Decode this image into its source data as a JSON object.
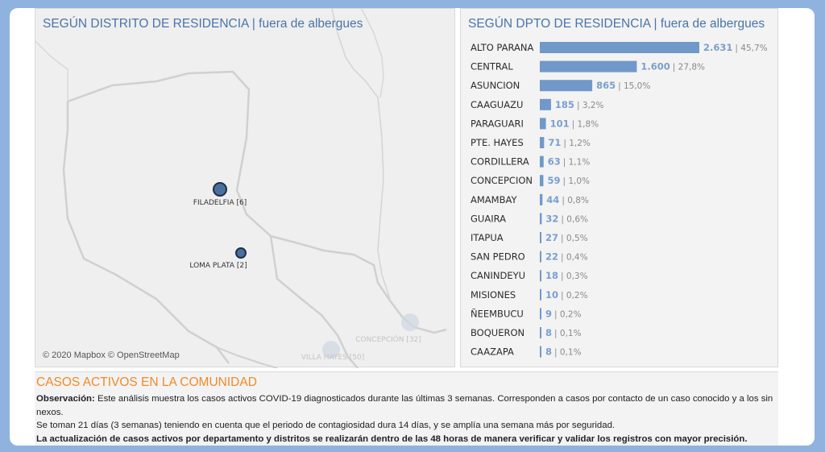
{
  "map": {
    "title": "SEGÚN DISTRITO DE RESIDENCIA | fuera de albergues",
    "credit": "© 2020 Mapbox  © OpenStreetMap",
    "markers": [
      {
        "label": "FILADELFIA [6]",
        "active": true
      },
      {
        "label": "LOMA PLATA [2]",
        "active": true
      },
      {
        "label": "CONCEPCIÓN [32]",
        "active": false
      },
      {
        "label": "VILLA HAYES [50]",
        "active": false
      }
    ],
    "colors": {
      "active": "#4b6f9e",
      "faded": "#cfd8e3",
      "border": "#d0d0d0"
    }
  },
  "chart_data": {
    "type": "bar",
    "orientation": "horizontal",
    "title": "SEGÚN DPTO DE RESIDENCIA | fuera de albergues",
    "categories": [
      "ALTO PARANA",
      "CENTRAL",
      "ASUNCION",
      "CAAGUAZU",
      "PARAGUARI",
      "PTE. HAYES",
      "CORDILLERA",
      "CONCEPCION",
      "AMAMBAY",
      "GUAIRA",
      "ITAPUA",
      "SAN PEDRO",
      "CANINDEYU",
      "MISIONES",
      "ÑEEMBUCU",
      "BOQUERON",
      "CAAZAPA"
    ],
    "values": [
      2631,
      1600,
      865,
      185,
      101,
      71,
      63,
      59,
      44,
      32,
      27,
      22,
      18,
      10,
      9,
      8,
      8
    ],
    "value_labels": [
      "2.631",
      "1.600",
      "865",
      "185",
      "101",
      "71",
      "63",
      "59",
      "44",
      "32",
      "27",
      "22",
      "18",
      "10",
      "9",
      "8",
      "8"
    ],
    "percent_labels": [
      "45,7%",
      "27,8%",
      "15,0%",
      "3,2%",
      "1,8%",
      "1,2%",
      "1,1%",
      "1,0%",
      "0,8%",
      "0,6%",
      "0,5%",
      "0,4%",
      "0,3%",
      "0,2%",
      "0,2%",
      "0,1%",
      "0,1%"
    ],
    "xlim": [
      0,
      2631
    ],
    "grid": false,
    "bar_color": "#7099c9"
  },
  "notes": {
    "title": "CASOS ACTIVOS EN LA COMUNIDAD",
    "obs_label": "Observación:",
    "obs_text": " Este análisis muestra los casos activos COVID-19 diagnosticados durante las últimas 3 semanas. Corresponden a casos por contacto de un caso conocido y a los sin nexos.",
    "line2": "Se toman 21 días (3 semanas) teniendo en cuenta que el periodo de contagiosidad dura 14 días, y se amplía una semana más por seguridad.",
    "line3": "La actualización de casos activos por departamento y distritos se realizarán dentro de las 48 horas de manera verificar y validar los registros con mayor precisión."
  }
}
